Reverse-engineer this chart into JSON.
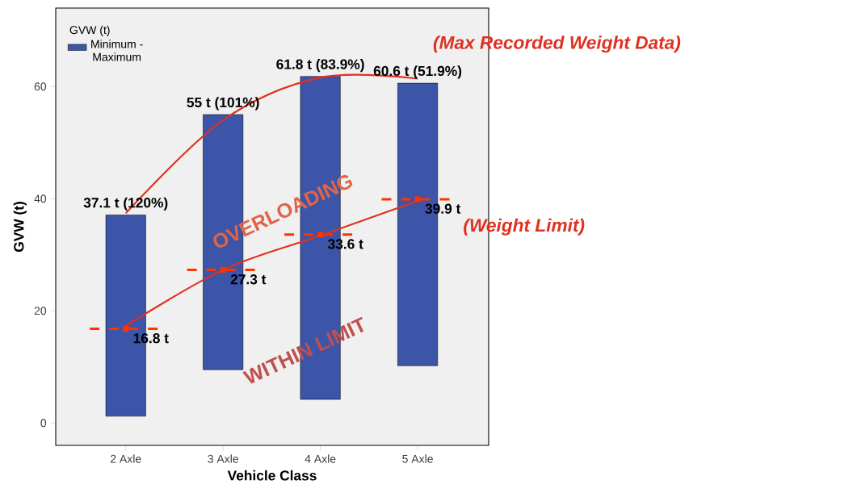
{
  "chart_data": {
    "type": "bar",
    "xlabel": "Vehicle Class",
    "ylabel": "GVW (t)",
    "legend_title": "GVW (t)",
    "legend": "top left",
    "grid": false,
    "categories": [
      "2 Axle",
      "3 Axle",
      "4 Axle",
      "5 Axle"
    ],
    "ylim": [
      -4,
      74
    ],
    "yticks": [
      0,
      20,
      40,
      60
    ],
    "series": [
      {
        "name": "Minimum - Maximum",
        "color": "#3c55a8",
        "base": [
          1.2,
          9.5,
          4.2,
          10.2
        ],
        "values": [
          35.9,
          45.5,
          57.6,
          50.4
        ]
      },
      {
        "type": "scatter",
        "marker": "square",
        "line_style": "dashed",
        "color": "#ff3300",
        "values": [
          16.8,
          27.3,
          33.6,
          39.9
        ],
        "value_labels": [
          "16.8 t",
          "27.3 t",
          "33.6 t",
          "39.9 t"
        ]
      },
      {
        "name": "(Max Recorded Weight Data)",
        "type": "line",
        "color": "#e03020",
        "values": [
          37.4,
          54,
          61.6,
          61.4
        ]
      },
      {
        "name": "(Weight Limit)",
        "type": "line",
        "color": "#e03020",
        "values": [
          17.3,
          27.3,
          33.4,
          39.6
        ]
      }
    ],
    "annotations": [
      {
        "text": "37.1 t (120%)",
        "x": "2 Axle",
        "y": 37.1
      },
      {
        "text": "55 t (101%)",
        "x": "3 Axle",
        "y": 55
      },
      {
        "text": "61.8 t (83.9%)",
        "x": "4 Axle",
        "y": 61.8
      },
      {
        "text": "60.6 t (51.9%)",
        "x": "5 Axle",
        "y": 60.6
      },
      "OVERLOADING",
      "WITHIN LIMIT"
    ]
  }
}
